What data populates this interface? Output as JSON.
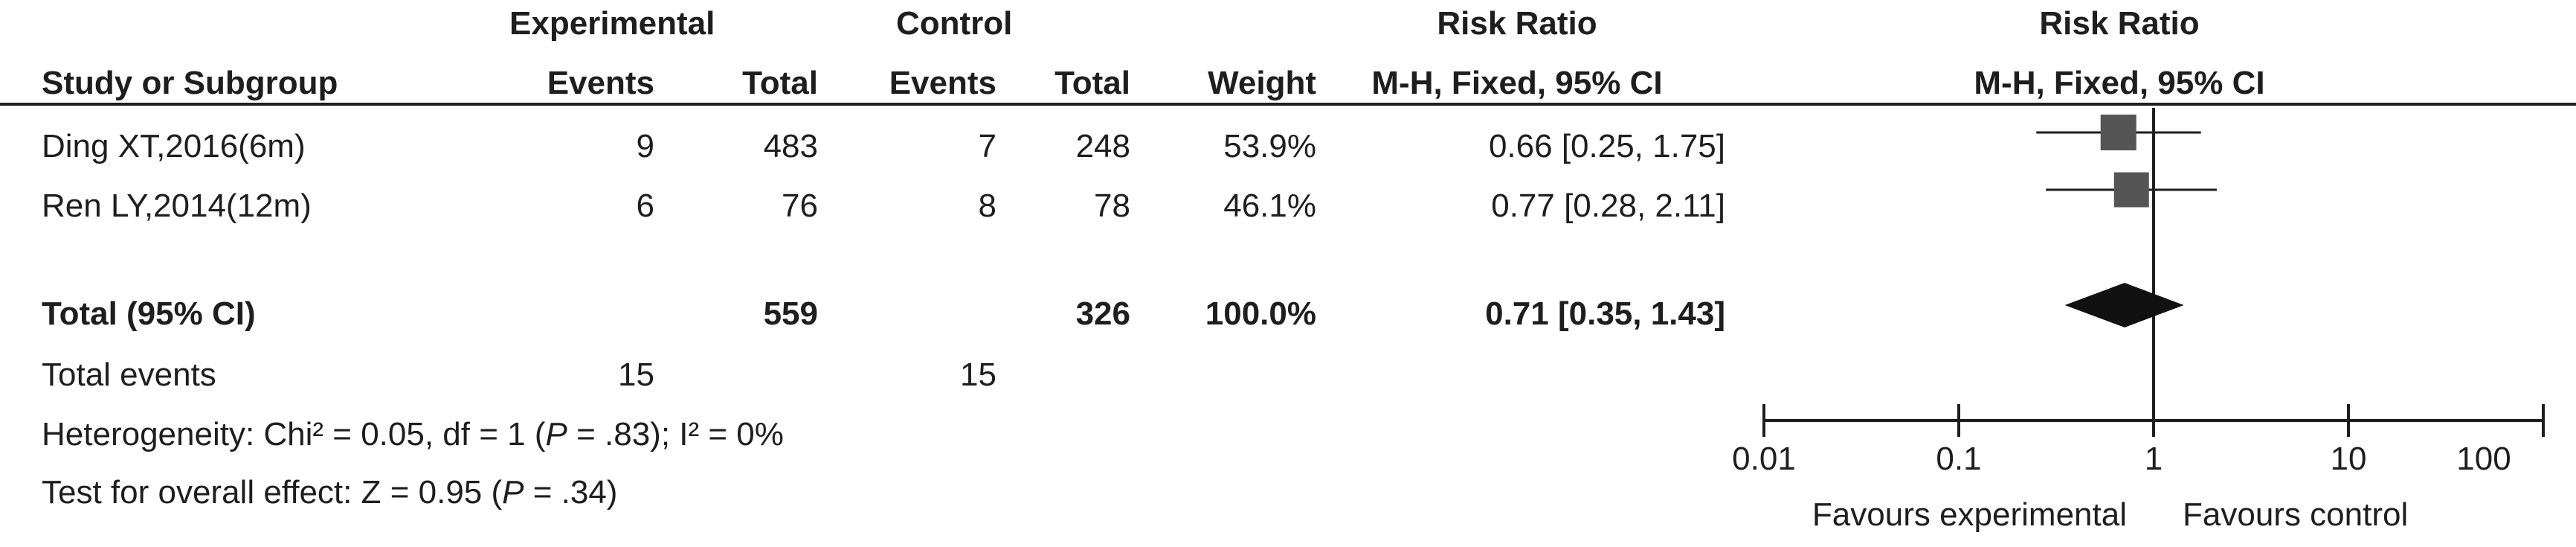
{
  "header": {
    "group_experimental": "Experimental",
    "group_control": "Control",
    "rr_group_table": "Risk Ratio",
    "rr_group_plot": "Risk Ratio",
    "col_study": "Study or Subgroup",
    "col_exp_events": "Events",
    "col_exp_total": "Total",
    "col_ctl_events": "Events",
    "col_ctl_total": "Total",
    "col_weight": "Weight",
    "col_rr_table": "M-H, Fixed, 95% CI",
    "col_rr_plot": "M-H, Fixed, 95% CI"
  },
  "studies": [
    {
      "name": "Ding XT,2016(6m)",
      "exp_events": "9",
      "exp_total": "483",
      "ctl_events": "7",
      "ctl_total": "248",
      "weight": "53.9%",
      "rr_text": "0.66 [0.25, 1.75]"
    },
    {
      "name": "Ren LY,2014(12m)",
      "exp_events": "6",
      "exp_total": "76",
      "ctl_events": "8",
      "ctl_total": "78",
      "weight": "46.1%",
      "rr_text": "0.77 [0.28, 2.11]"
    }
  ],
  "total": {
    "label": "Total (95% CI)",
    "exp_total": "559",
    "ctl_total": "326",
    "weight": "100.0%",
    "rr_text": "0.71 [0.35, 1.43]"
  },
  "total_events": {
    "label": "Total events",
    "exp": "15",
    "ctl": "15"
  },
  "heterogeneity": {
    "prefix": "Heterogeneity: Chi² = 0.05, df = 1 (",
    "p_symbol": "P",
    "suffix": " = .83); I² = 0%"
  },
  "overall_effect": {
    "prefix": "Test for overall effect: Z = 0.95 (",
    "p_symbol": "P",
    "suffix": " = .34)"
  },
  "axis": {
    "ticks": [
      "0.01",
      "0.1",
      "1",
      "10",
      "100"
    ],
    "favours_left": "Favours experimental",
    "favours_right": "Favours control"
  },
  "colors": {
    "text": "#1e1e1e",
    "marker": "#555555"
  },
  "chart_data": {
    "type": "forest",
    "scale": "log",
    "xlim": [
      0.01,
      100
    ],
    "null_line": 1,
    "x_ticks": [
      0.01,
      0.1,
      1,
      10,
      100
    ],
    "studies": [
      {
        "name": "Ding XT,2016(6m)",
        "rr": 0.66,
        "lo": 0.25,
        "hi": 1.75,
        "weight": 53.9
      },
      {
        "name": "Ren LY,2014(12m)",
        "rr": 0.77,
        "lo": 0.28,
        "hi": 2.11,
        "weight": 46.1
      }
    ],
    "pooled": {
      "rr": 0.71,
      "lo": 0.35,
      "hi": 1.43
    }
  }
}
